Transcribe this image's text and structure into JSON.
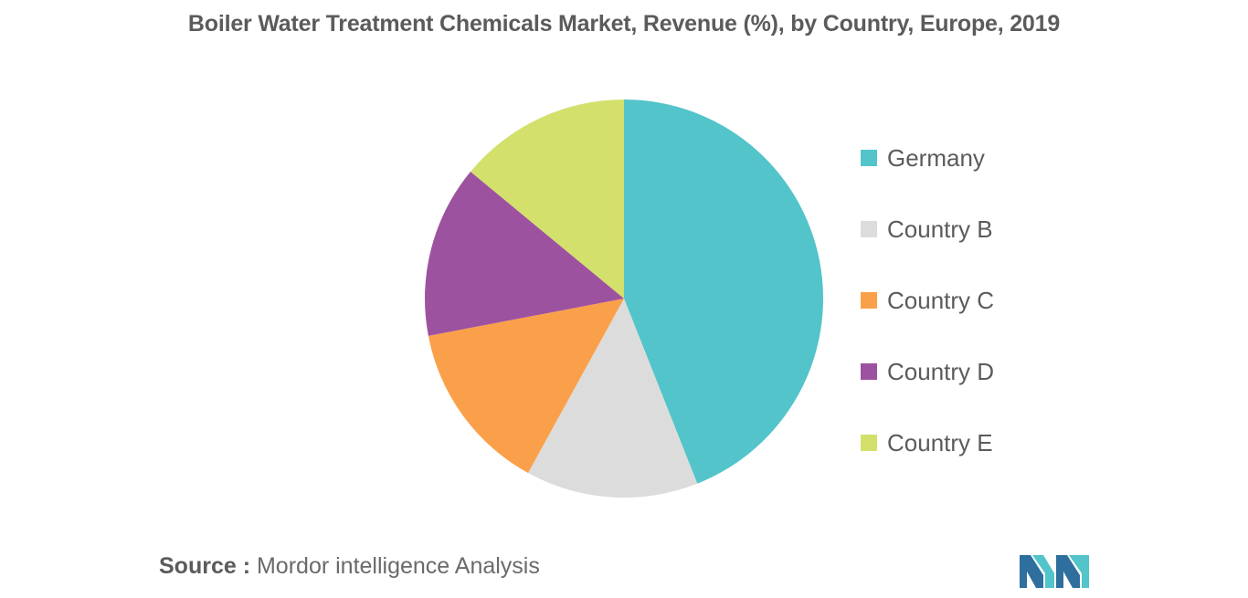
{
  "chart_data": {
    "type": "pie",
    "title": "Boiler Water Treatment Chemicals Market, Revenue (%), by Country, Europe, 2019",
    "legend_position": "right",
    "slices": [
      {
        "label": "Germany",
        "value": 44,
        "color": "#52c4ca"
      },
      {
        "label": "Country B",
        "value": 14,
        "color": "#dcdcdc"
      },
      {
        "label": "Country C",
        "value": 14,
        "color": "#fba04a"
      },
      {
        "label": "Country D",
        "value": 14,
        "color": "#9d52a0"
      },
      {
        "label": "Country E",
        "value": 14,
        "color": "#d3e06c"
      }
    ]
  },
  "source": {
    "label": "Source :",
    "text": "Mordor intelligence Analysis"
  },
  "logo": {
    "icon": "mordor-intelligence-logo-icon",
    "colors": [
      "#2e6f9e",
      "#52c4ca"
    ]
  }
}
